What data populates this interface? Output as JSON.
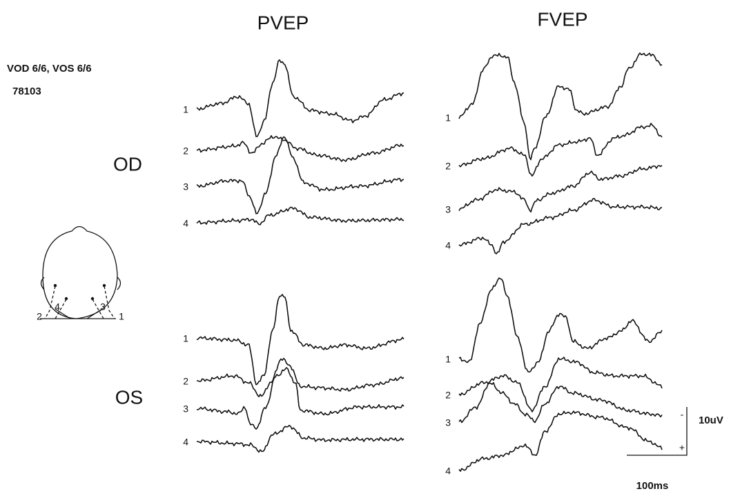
{
  "header": {
    "columns": [
      "PVEP",
      "FVEP"
    ],
    "acuity": "VOD 6/6, VOS 6/6",
    "id": "78103"
  },
  "rows": [
    "OD",
    "OS"
  ],
  "panels": [
    {
      "labels": [
        "1",
        "2",
        "3",
        "4"
      ]
    },
    {
      "labels": [
        "1",
        "2",
        "3",
        "4"
      ]
    },
    {
      "labels": [
        "1",
        "2",
        "3",
        "4"
      ]
    },
    {
      "labels": [
        "1",
        "2",
        "3",
        "4"
      ]
    }
  ],
  "head": {
    "electrodes": [
      "2",
      "4",
      "3",
      "1"
    ]
  },
  "scale": {
    "amplitude": "10uV",
    "time": "100ms",
    "negative": "-",
    "positive": "+"
  }
}
